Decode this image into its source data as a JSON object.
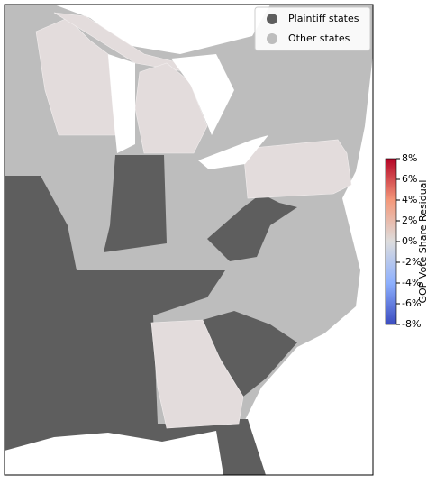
{
  "legend": {
    "items": [
      {
        "label": "Plaintiff states",
        "color": "#5e5e5e"
      },
      {
        "label": "Other states",
        "color": "#bdbdbd"
      }
    ]
  },
  "colorbar": {
    "label": "GOP Vote Share Residual",
    "lim": [
      -8,
      8
    ],
    "ticks": [
      {
        "value": 8,
        "label": "8%"
      },
      {
        "value": 6,
        "label": "6%"
      },
      {
        "value": 4,
        "label": "4%"
      },
      {
        "value": 2,
        "label": "2%"
      },
      {
        "value": 0,
        "label": "0%"
      },
      {
        "value": -2,
        "label": "-2%"
      },
      {
        "value": -4,
        "label": "-4%"
      },
      {
        "value": -6,
        "label": "-6%"
      },
      {
        "value": -8,
        "label": "-8%"
      }
    ]
  }
}
